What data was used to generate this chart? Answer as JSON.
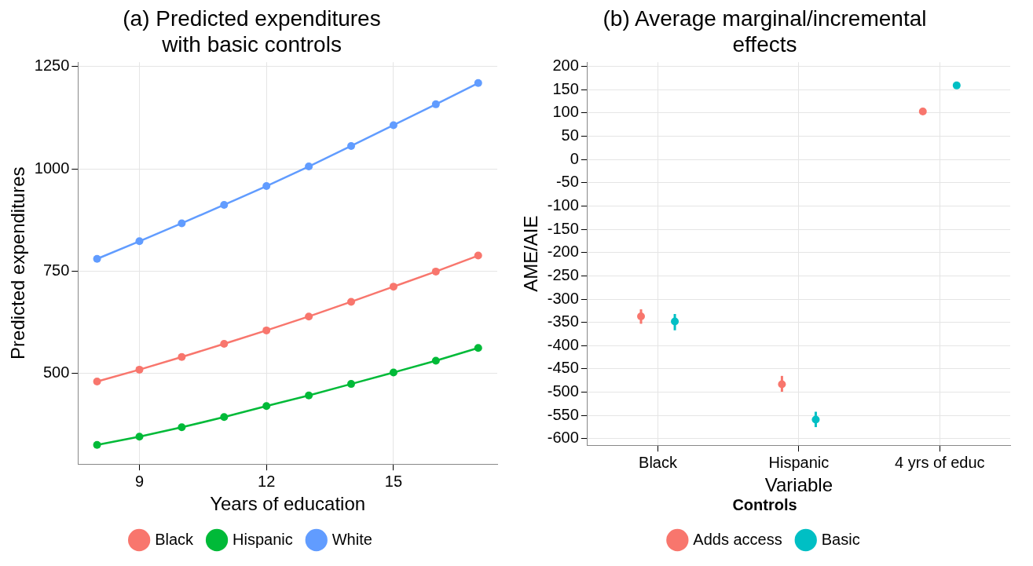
{
  "chart_data": [
    {
      "type": "line",
      "title": "(a) Predicted expenditures\nwith basic controls",
      "xlabel": "Years of education",
      "ylabel": "Predicted expenditures",
      "x": [
        8,
        9,
        10,
        11,
        12,
        13,
        14,
        15,
        16,
        17
      ],
      "xlim": [
        7.55,
        17.45
      ],
      "xticks": [
        9,
        12,
        15
      ],
      "ylim": [
        278,
        1261
      ],
      "yticks": [
        500,
        750,
        1000,
        1250
      ],
      "grid": true,
      "legend": "bottom",
      "marker": "circle",
      "line_style": "solid",
      "series": [
        {
          "name": "Black",
          "color": "#f8766d",
          "values": [
            480,
            509,
            540,
            572,
            605,
            639,
            675,
            712,
            749,
            788
          ]
        },
        {
          "name": "Hispanic",
          "color": "#00ba38",
          "values": [
            325,
            345,
            368,
            393,
            420,
            446,
            474,
            502,
            531,
            562
          ]
        },
        {
          "name": "White",
          "color": "#619cff",
          "values": [
            780,
            823,
            867,
            912,
            958,
            1006,
            1056,
            1107,
            1158,
            1210
          ]
        }
      ]
    },
    {
      "type": "scatter",
      "title": "(b) Average marginal/incremental\neffects",
      "xlabel": "Variable",
      "ylabel": "AME/AIE",
      "legend_title": "Controls",
      "categories": [
        "Black",
        "Hispanic",
        "4 yrs of educ"
      ],
      "ylim": [
        -614,
        209
      ],
      "yticks": [
        200,
        150,
        100,
        50,
        0,
        -50,
        -100,
        -150,
        -200,
        -250,
        -300,
        -350,
        -400,
        -450,
        -500,
        -550,
        -600
      ],
      "grid": true,
      "legend": "bottom",
      "marker": "circle",
      "series": [
        {
          "name": "Adds access",
          "color": "#f8766d",
          "values": [
            -337,
            -483,
            103
          ],
          "errors": [
            [
              -353,
              -322
            ],
            [
              -499,
              -465
            ],
            null
          ]
        },
        {
          "name": "Basic",
          "color": "#00bfc4",
          "values": [
            -348,
            -559,
            159
          ],
          "errors": [
            [
              -367,
              -332
            ],
            [
              -575,
              -542
            ],
            null
          ]
        }
      ]
    }
  ]
}
